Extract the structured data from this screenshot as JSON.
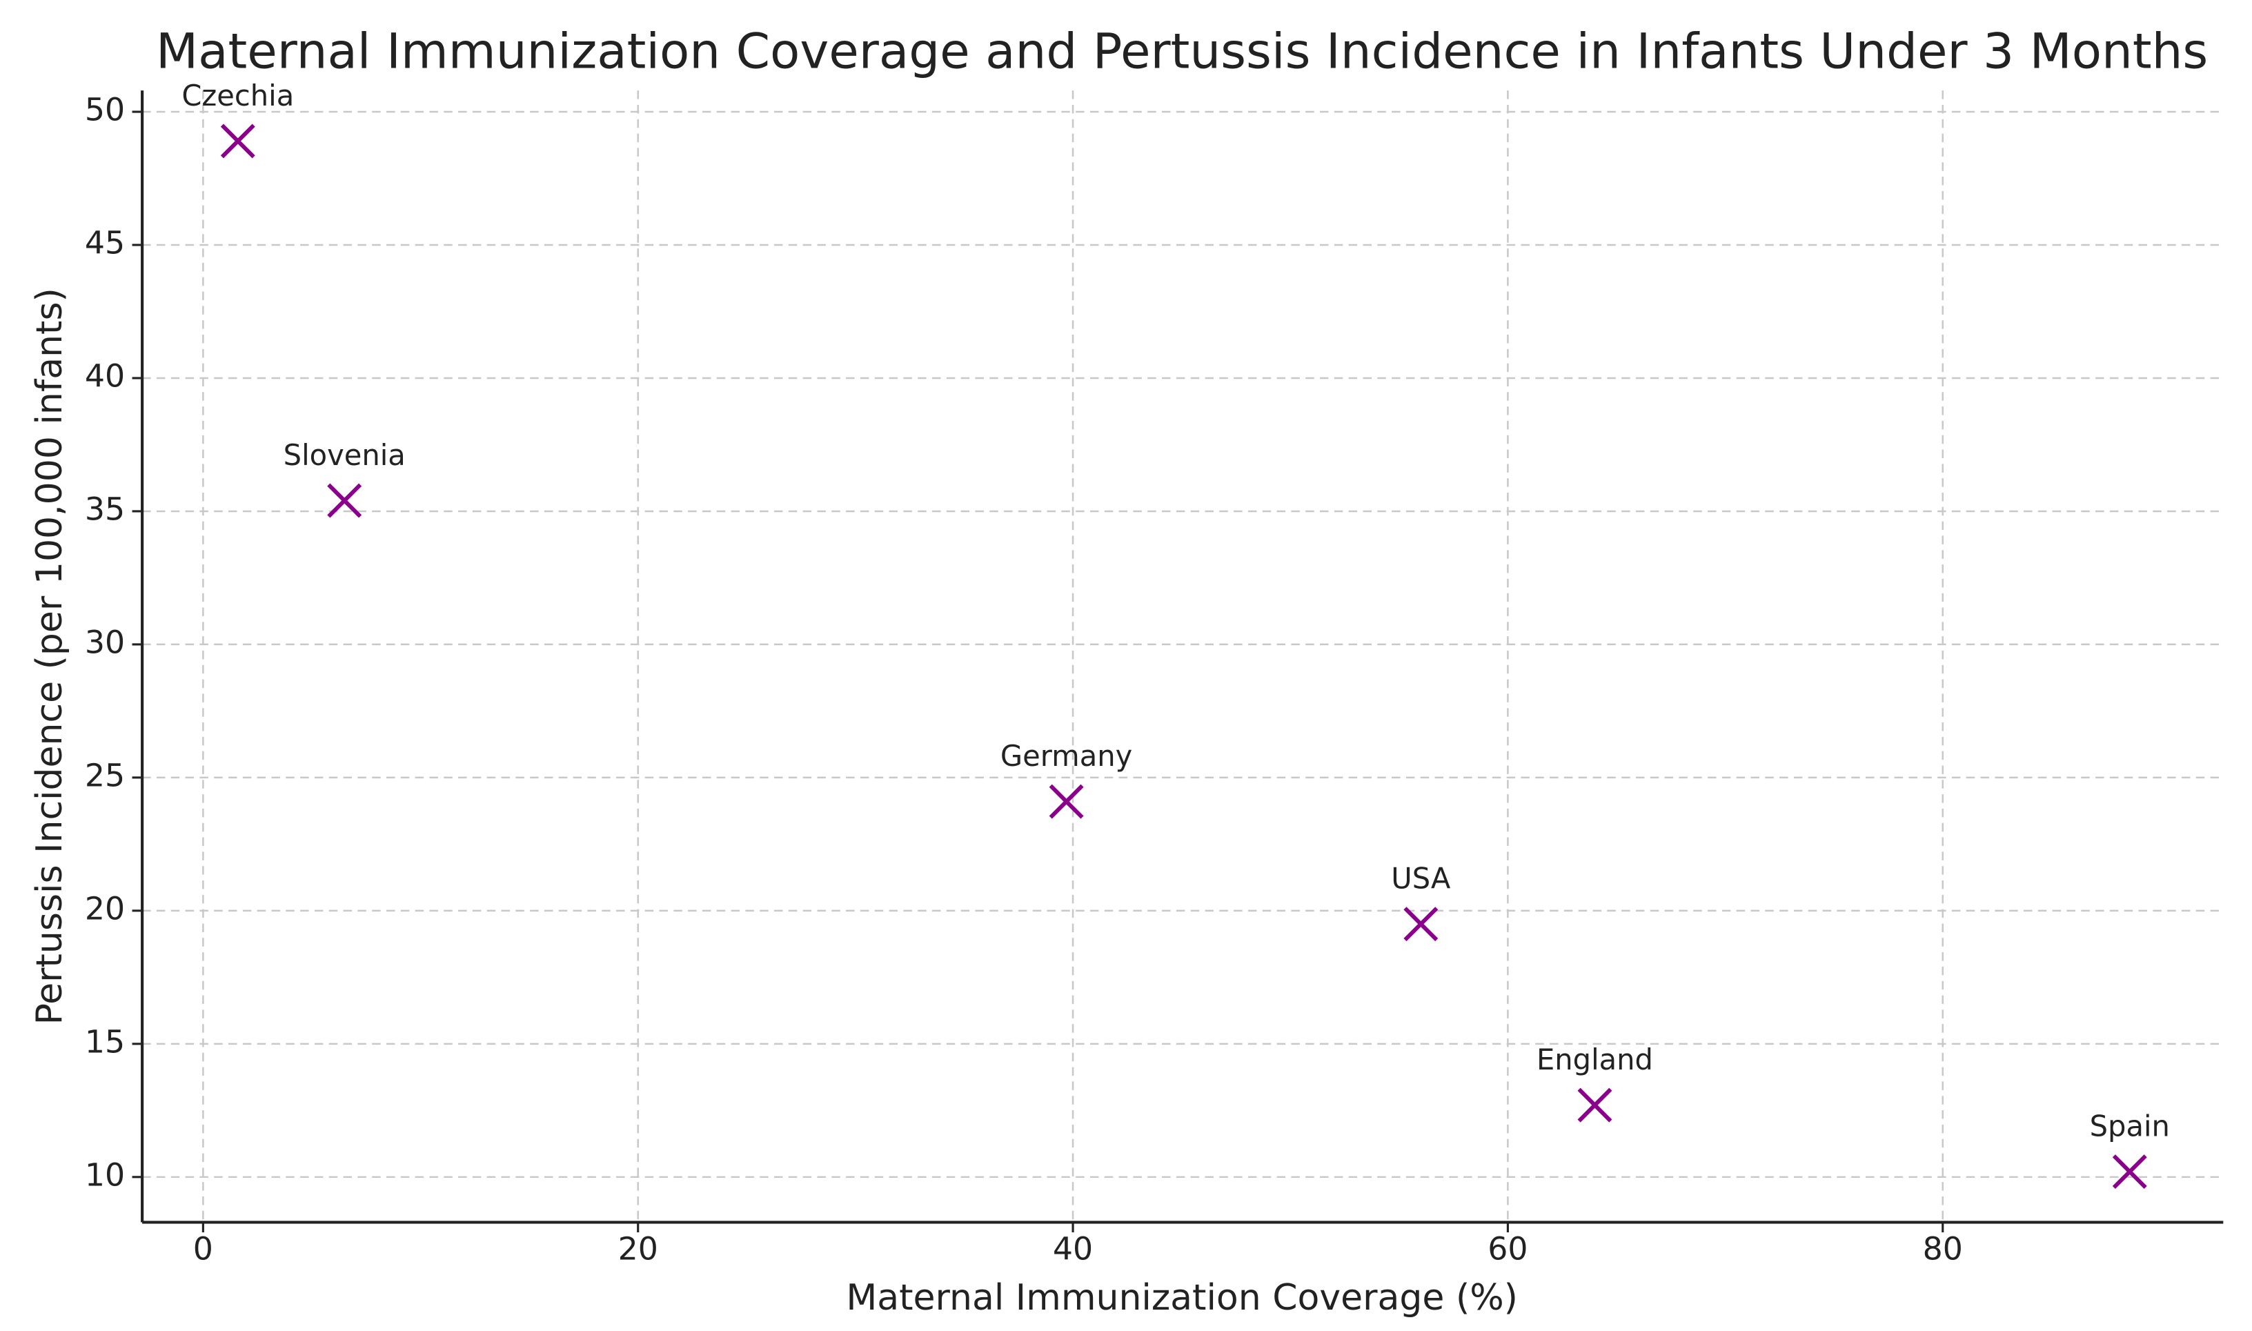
{
  "chart_data": {
    "type": "scatter",
    "title": "Maternal Immunization Coverage and Pertussis Incidence in Infants Under 3 Months",
    "x_label": "Maternal Immunization Coverage (%)",
    "y_label": "Pertussis Incidence (per 100,000 infants)",
    "labels": [
      "Czechia",
      "Slovenia",
      "Germany",
      "USA",
      "England",
      "Spain"
    ],
    "x": [
      1.6,
      6.5,
      39.7,
      56.0,
      64.0,
      88.6
    ],
    "values": [
      48.9,
      35.4,
      24.1,
      19.5,
      12.7,
      10.2
    ],
    "color": "#8b008b",
    "marker": "x",
    "xlim": [
      -2.8,
      92.9
    ],
    "ylim": [
      8.3,
      50.8
    ],
    "xticks": [
      0,
      20,
      40,
      60,
      80
    ],
    "yticks": [
      10,
      15,
      20,
      25,
      30,
      35,
      40,
      45,
      50
    ],
    "grid": true
  }
}
